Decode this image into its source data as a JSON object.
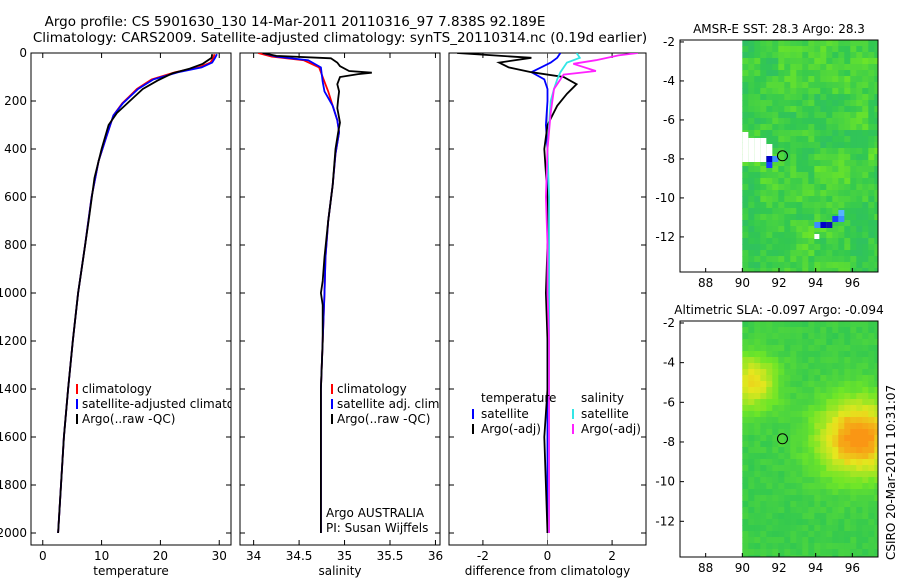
{
  "title": {
    "line1": "Argo profile: CS 5901630_130 14-Mar-2011 20110316_97 7.838S 92.189E",
    "line2": "Climatology: CARS2009. Satellite-adjusted climatology: synTS_20110314.nc (0.19d earlier)"
  },
  "colors": {
    "climatology": "#ff0000",
    "satellite": "#0000ff",
    "argo": "#000000",
    "sal_satellite": "#33e6e6",
    "sal_argo": "#ff22ff"
  },
  "side_text": "CSIRO 20-Mar-2011 10:31:07",
  "chart_data": [
    {
      "id": "temperature",
      "type": "line",
      "xlabel": "temperature",
      "xlim": [
        -2,
        32
      ],
      "xticks": [
        0,
        10,
        20,
        30
      ],
      "ylim": [
        2050,
        0
      ],
      "yticks": [
        0,
        200,
        400,
        600,
        800,
        1000,
        1200,
        1400,
        1600,
        1800,
        2000
      ],
      "legend": [
        "climatology",
        "satellite-adjusted climatology",
        "Argo(..raw -QC)"
      ],
      "series": [
        {
          "name": "climatology",
          "color": "#ff0000",
          "points": [
            [
              29.2,
              5
            ],
            [
              29.0,
              20
            ],
            [
              28.5,
              40
            ],
            [
              26.5,
              60
            ],
            [
              22.5,
              80
            ],
            [
              18.5,
              110
            ],
            [
              16,
              150
            ],
            [
              13.5,
              210
            ],
            [
              12,
              260
            ],
            [
              10.8,
              350
            ],
            [
              9.5,
              450
            ],
            [
              8.3,
              600
            ],
            [
              7.2,
              800
            ],
            [
              6,
              1000
            ],
            [
              5.1,
              1200
            ],
            [
              4.3,
              1400
            ],
            [
              3.6,
              1600
            ],
            [
              3.1,
              1800
            ],
            [
              2.6,
              2000
            ]
          ]
        },
        {
          "name": "satellite-adjusted climatology",
          "color": "#0000ff",
          "points": [
            [
              29.6,
              5
            ],
            [
              29.3,
              20
            ],
            [
              28.8,
              40
            ],
            [
              27,
              60
            ],
            [
              23,
              80
            ],
            [
              18.8,
              110
            ],
            [
              16.2,
              150
            ],
            [
              13.6,
              210
            ],
            [
              12,
              260
            ],
            [
              10.8,
              350
            ],
            [
              9.5,
              450
            ],
            [
              8.3,
              600
            ],
            [
              7.2,
              800
            ],
            [
              6,
              1000
            ],
            [
              5.1,
              1200
            ],
            [
              4.3,
              1400
            ],
            [
              3.6,
              1600
            ],
            [
              3.1,
              1800
            ],
            [
              2.6,
              2000
            ]
          ]
        },
        {
          "name": "Argo(..raw -QC)",
          "color": "#000000",
          "points": [
            [
              28.8,
              5
            ],
            [
              28.7,
              20
            ],
            [
              27.2,
              45
            ],
            [
              25,
              65
            ],
            [
              22,
              85
            ],
            [
              19.5,
              115
            ],
            [
              17,
              150
            ],
            [
              14.8,
              200
            ],
            [
              12.6,
              250
            ],
            [
              11.2,
              300
            ],
            [
              10,
              400
            ],
            [
              8.8,
              520
            ],
            [
              7.8,
              700
            ],
            [
              6.9,
              850
            ],
            [
              6,
              1000
            ],
            [
              5.1,
              1200
            ],
            [
              4.3,
              1400
            ],
            [
              3.6,
              1600
            ],
            [
              3.1,
              1800
            ],
            [
              2.6,
              2000
            ]
          ]
        }
      ]
    },
    {
      "id": "salinity",
      "type": "line",
      "xlabel": "salinity",
      "xlim": [
        33.85,
        36.05
      ],
      "xticks": [
        34,
        34.5,
        35,
        35.5,
        36
      ],
      "xticklabels": [
        "34",
        "34.5",
        "35",
        "35.5",
        "36"
      ],
      "ylim": [
        2050,
        0
      ],
      "legend": [
        "climatology",
        "satellite adj. clim.",
        "Argo(..raw -QC)"
      ],
      "annotation": [
        "Argo AUSTRALIA",
        "PI: Susan Wijffels"
      ],
      "series": [
        {
          "name": "climatology",
          "color": "#ff0000",
          "points": [
            [
              34.05,
              0
            ],
            [
              34.2,
              15
            ],
            [
              34.55,
              30
            ],
            [
              34.72,
              60
            ],
            [
              34.78,
              120
            ],
            [
              34.82,
              160
            ],
            [
              34.87,
              220
            ],
            [
              34.92,
              280
            ],
            [
              34.94,
              330
            ],
            [
              34.9,
              420
            ],
            [
              34.87,
              550
            ],
            [
              34.82,
              700
            ],
            [
              34.79,
              850
            ],
            [
              34.78,
              1000
            ],
            [
              34.77,
              1100
            ],
            [
              34.76,
              1200
            ],
            [
              34.74,
              1400
            ],
            [
              34.74,
              1600
            ],
            [
              34.74,
              1800
            ],
            [
              34.74,
              2000
            ]
          ]
        },
        {
          "name": "satellite adj. clim.",
          "color": "#0000ff",
          "points": [
            [
              34.1,
              0
            ],
            [
              34.25,
              15
            ],
            [
              34.6,
              30
            ],
            [
              34.74,
              60
            ],
            [
              34.76,
              120
            ],
            [
              34.78,
              160
            ],
            [
              34.87,
              220
            ],
            [
              34.92,
              280
            ],
            [
              34.94,
              330
            ],
            [
              34.9,
              420
            ],
            [
              34.87,
              550
            ],
            [
              34.82,
              700
            ],
            [
              34.79,
              850
            ],
            [
              34.78,
              1000
            ],
            [
              34.77,
              1100
            ],
            [
              34.76,
              1200
            ],
            [
              34.74,
              1400
            ],
            [
              34.74,
              1600
            ],
            [
              34.74,
              1800
            ],
            [
              34.74,
              2000
            ]
          ]
        },
        {
          "name": "Argo(..raw -QC)",
          "color": "#000000",
          "points": [
            [
              34.1,
              0
            ],
            [
              34.25,
              12
            ],
            [
              34.85,
              22
            ],
            [
              34.92,
              40
            ],
            [
              34.95,
              55
            ],
            [
              35.05,
              75
            ],
            [
              35.3,
              82
            ],
            [
              35.15,
              88
            ],
            [
              34.95,
              100
            ],
            [
              34.92,
              130
            ],
            [
              34.94,
              160
            ],
            [
              34.93,
              190
            ],
            [
              34.92,
              230
            ],
            [
              34.95,
              290
            ],
            [
              34.93,
              330
            ],
            [
              34.9,
              400
            ],
            [
              34.87,
              550
            ],
            [
              34.82,
              700
            ],
            [
              34.78,
              850
            ],
            [
              34.76,
              950
            ],
            [
              34.74,
              1000
            ],
            [
              34.76,
              1050
            ],
            [
              34.76,
              1200
            ],
            [
              34.74,
              1400
            ],
            [
              34.74,
              1600
            ],
            [
              34.74,
              1800
            ],
            [
              34.74,
              2000
            ]
          ]
        }
      ]
    },
    {
      "id": "difference",
      "type": "line",
      "xlabel": "difference from climatology",
      "xlim": [
        -3.05,
        3.05
      ],
      "xticks": [
        -2,
        0,
        2
      ],
      "ylim": [
        2050,
        0
      ],
      "legend_left_title": "temperature",
      "legend_left": [
        "satellite",
        "Argo(-adj)"
      ],
      "legend_right_title": "salinity",
      "legend_right": [
        "satellite",
        "Argo(-adj)"
      ],
      "series": [
        {
          "name": "temperature satellite",
          "color": "#0000ff",
          "points": [
            [
              0.4,
              0
            ],
            [
              0.3,
              20
            ],
            [
              0.1,
              40
            ],
            [
              -0.2,
              60
            ],
            [
              -0.5,
              80
            ],
            [
              -0.1,
              110
            ],
            [
              0,
              150
            ],
            [
              0,
              200
            ],
            [
              -0.05,
              300
            ],
            [
              0,
              400
            ],
            [
              0,
              600
            ],
            [
              0,
              1000
            ],
            [
              0,
              1400
            ],
            [
              0,
              1800
            ],
            [
              0,
              2000
            ]
          ]
        },
        {
          "name": "temperature Argo(-adj)",
          "color": "#000000",
          "points": [
            [
              -2.8,
              0
            ],
            [
              -0.5,
              20
            ],
            [
              -1.5,
              40
            ],
            [
              -1.2,
              60
            ],
            [
              -0.5,
              80
            ],
            [
              0.5,
              100
            ],
            [
              0.9,
              130
            ],
            [
              0.6,
              170
            ],
            [
              0.3,
              220
            ],
            [
              0,
              300
            ],
            [
              -0.1,
              400
            ],
            [
              0,
              600
            ],
            [
              0,
              800
            ],
            [
              -0.05,
              1000
            ],
            [
              0,
              1200
            ],
            [
              0,
              1400
            ],
            [
              -0.1,
              1600
            ],
            [
              -0.05,
              1800
            ],
            [
              0,
              2000
            ]
          ]
        },
        {
          "name": "salinity satellite",
          "color": "#33e6e6",
          "points": [
            [
              0.9,
              0
            ],
            [
              1.0,
              20
            ],
            [
              0.6,
              40
            ],
            [
              0.4,
              80
            ],
            [
              0.3,
              110
            ],
            [
              0.2,
              150
            ],
            [
              0.1,
              200
            ],
            [
              0.05,
              300
            ],
            [
              0,
              400
            ],
            [
              0.05,
              600
            ],
            [
              0.05,
              800
            ],
            [
              0.05,
              1000
            ],
            [
              0.05,
              1200
            ],
            [
              0.05,
              1400
            ],
            [
              0.05,
              1600
            ],
            [
              0.05,
              1800
            ],
            [
              0.05,
              2000
            ]
          ]
        },
        {
          "name": "salinity Argo(-adj)",
          "color": "#ff22ff",
          "points": [
            [
              2.8,
              0
            ],
            [
              2.2,
              10
            ],
            [
              1.5,
              30
            ],
            [
              0.8,
              45
            ],
            [
              1.5,
              75
            ],
            [
              0.5,
              90
            ],
            [
              0.2,
              150
            ],
            [
              0.1,
              250
            ],
            [
              0,
              400
            ],
            [
              -0.05,
              600
            ],
            [
              0,
              800
            ],
            [
              0,
              1000
            ],
            [
              0.05,
              1200
            ],
            [
              0.05,
              1400
            ],
            [
              0.05,
              1600
            ],
            [
              0.05,
              1800
            ],
            [
              0.05,
              2000
            ]
          ]
        }
      ]
    },
    {
      "id": "amsre-map",
      "type": "heatmap",
      "title": "AMSR-E SST: 28.3 Argo: 28.3",
      "xlim": [
        86.6,
        97.4
      ],
      "ylim": [
        -13.8,
        -1.9
      ],
      "xticks": [
        88,
        90,
        92,
        94,
        96
      ],
      "yticks": [
        -2,
        -4,
        -6,
        -8,
        -10,
        -12
      ],
      "yticklabels": [
        "-2",
        "-4",
        "-6",
        "-8",
        "-10",
        "-12"
      ],
      "data_lon_min": 90,
      "marker": {
        "lon": 92.189,
        "lat": -7.838
      }
    },
    {
      "id": "sla-map",
      "type": "heatmap",
      "title": "Altimetric SLA: -0.097 Argo: -0.094",
      "xlim": [
        86.6,
        97.4
      ],
      "ylim": [
        -13.8,
        -1.9
      ],
      "xticks": [
        88,
        90,
        92,
        94,
        96
      ],
      "yticks": [
        -2,
        -4,
        -6,
        -8,
        -10,
        -12
      ],
      "yticklabels": [
        "-2",
        "-4",
        "-6",
        "-8",
        "-10",
        "-12"
      ],
      "data_lon_min": 90,
      "marker": {
        "lon": 92.189,
        "lat": -7.838
      }
    }
  ]
}
